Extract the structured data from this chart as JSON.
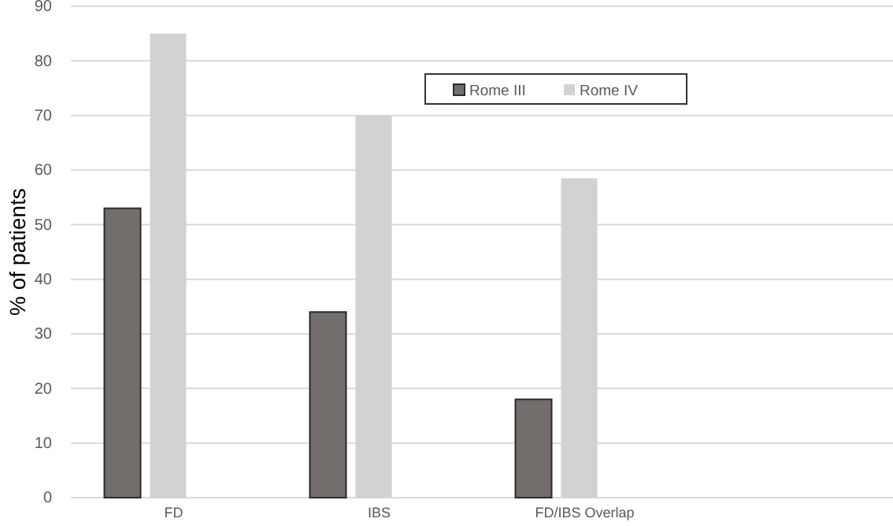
{
  "chart_data": {
    "type": "bar",
    "ylabel": "% of patients",
    "categories": [
      "FD",
      "IBS",
      "FD/IBS Overlap",
      null
    ],
    "series": [
      {
        "name": "Rome III",
        "color": "#736d6c",
        "values": [
          53,
          34,
          18,
          null
        ]
      },
      {
        "name": "Rome IV",
        "color": "#d2d2d2",
        "values": [
          85,
          70,
          58.5,
          null
        ]
      }
    ],
    "ylim": [
      0,
      90
    ],
    "yticks": [
      0,
      10,
      20,
      30,
      40,
      50,
      60,
      70,
      80,
      90
    ],
    "grid": "y",
    "legend": "top right"
  }
}
